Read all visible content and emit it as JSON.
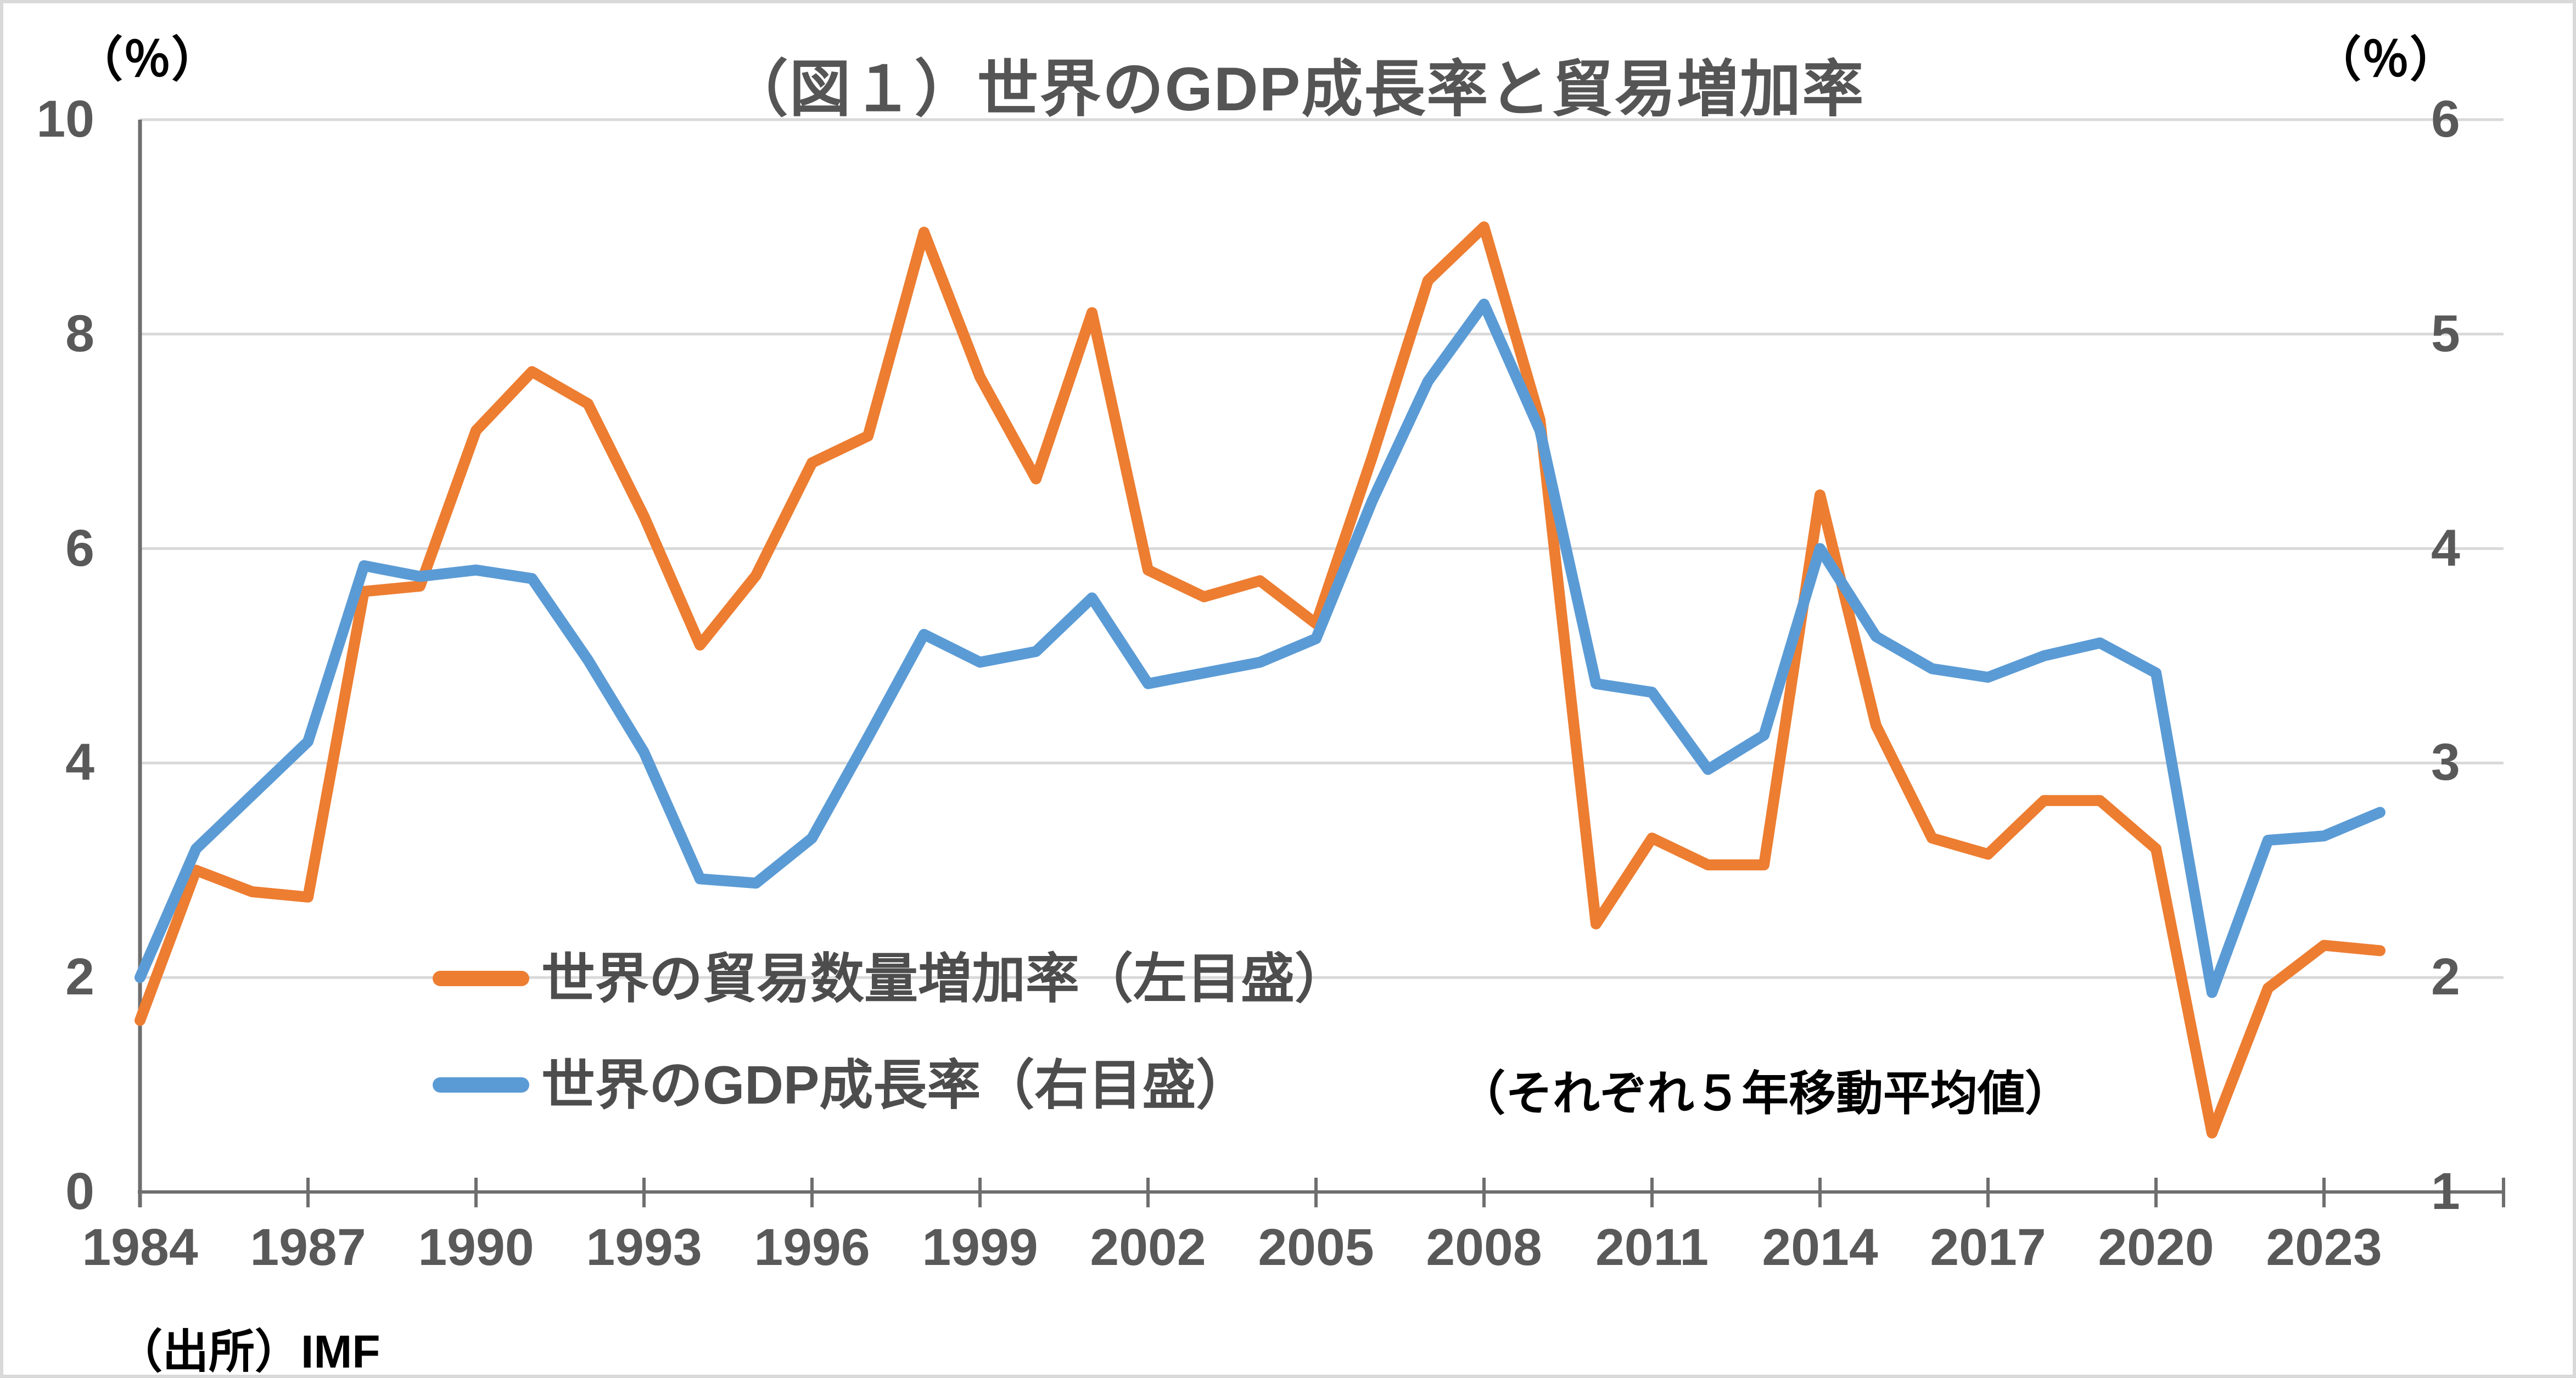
{
  "figure": {
    "title": "（図１）世界のGDP成長率と貿易増加率",
    "source": "（出所）IMF",
    "annotation": "（それぞれ５年移動平均値）"
  },
  "colors": {
    "trade_line": "#ED7D31",
    "gdp_line": "#5B9BD5",
    "gridline": "#D9D9D9",
    "axis_line": "#6E6E6E",
    "tick_text": "#595959",
    "title_text": "#555555",
    "legend_text": "#4D4D4D"
  },
  "chart_data": {
    "type": "line",
    "title": "（図１）世界のGDP成長率と貿易増加率",
    "annotation": "（それぞれ５年移動平均値）",
    "source": "（出所）IMF",
    "grid": true,
    "legend_position": "inside-lower-left",
    "x": [
      1984,
      1985,
      1986,
      1987,
      1988,
      1989,
      1990,
      1991,
      1992,
      1993,
      1994,
      1995,
      1996,
      1997,
      1998,
      1999,
      2000,
      2001,
      2002,
      2003,
      2004,
      2005,
      2006,
      2007,
      2008,
      2009,
      2010,
      2011,
      2012,
      2013,
      2014,
      2015,
      2016,
      2017,
      2018,
      2019,
      2020,
      2021,
      2022,
      2023,
      2024
    ],
    "x_tick_years": [
      1984,
      1987,
      1990,
      1993,
      1996,
      1999,
      2002,
      2005,
      2008,
      2011,
      2014,
      2017,
      2020,
      2023
    ],
    "left_axis": {
      "label": "（％）",
      "min": 0,
      "max": 10,
      "ticks": [
        0,
        2,
        4,
        6,
        8,
        10
      ]
    },
    "right_axis": {
      "label": "（％）",
      "min": 1,
      "max": 6,
      "ticks": [
        1,
        2,
        3,
        4,
        5,
        6
      ]
    },
    "series": [
      {
        "name": "世界の貿易数量増加率（左目盛）",
        "axis": "left",
        "color": "#ED7D31",
        "values": [
          1.6,
          3.0,
          2.8,
          2.75,
          5.6,
          5.65,
          7.1,
          7.65,
          7.35,
          6.3,
          5.1,
          5.75,
          6.8,
          7.05,
          8.95,
          7.6,
          6.65,
          8.2,
          5.8,
          5.55,
          5.7,
          5.3,
          6.85,
          8.5,
          9.0,
          7.2,
          2.5,
          3.3,
          3.05,
          3.05,
          6.5,
          4.35,
          3.3,
          3.15,
          3.65,
          3.65,
          3.2,
          0.55,
          1.9,
          2.3,
          2.25
        ]
      },
      {
        "name": "世界のGDP成長率（右目盛）",
        "axis": "right",
        "color": "#5B9BD5",
        "values": [
          2.0,
          2.6,
          2.85,
          3.1,
          3.92,
          3.87,
          3.9,
          3.86,
          3.48,
          3.05,
          2.46,
          2.44,
          2.65,
          3.12,
          3.6,
          3.47,
          3.52,
          3.77,
          3.37,
          3.42,
          3.47,
          3.58,
          4.22,
          4.78,
          5.14,
          4.55,
          3.37,
          3.33,
          2.97,
          3.13,
          4.0,
          3.59,
          3.44,
          3.4,
          3.5,
          3.56,
          3.42,
          1.93,
          2.64,
          2.66,
          2.77
        ]
      }
    ]
  }
}
